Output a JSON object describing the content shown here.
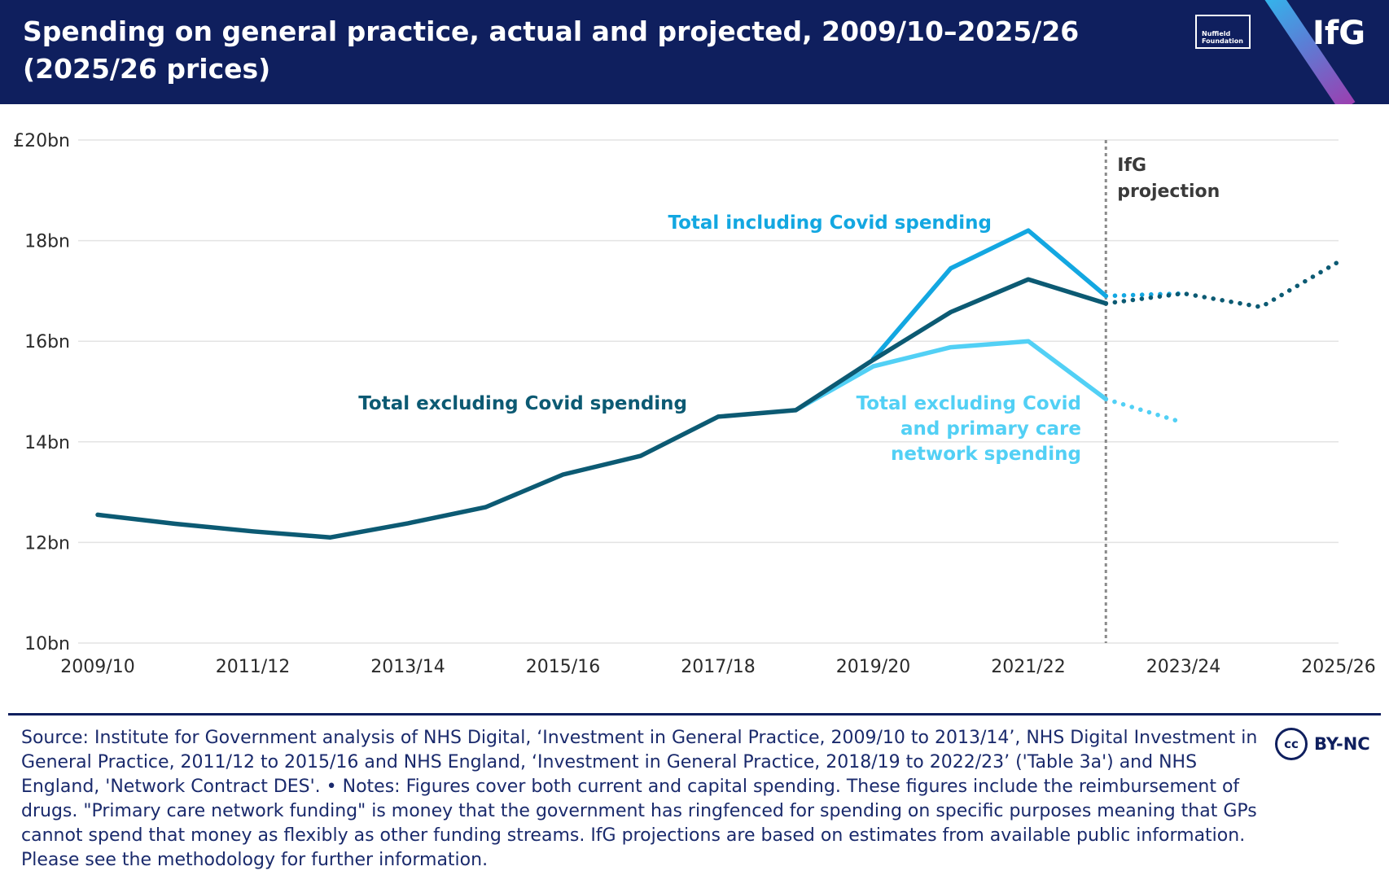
{
  "header": {
    "title": "Spending on general practice, actual and projected, 2009/10–2025/26 (2025/26 prices)",
    "nuffield_logo_line1": "Nuffield",
    "nuffield_logo_line2": "Foundation",
    "ifg_logo": "IfG"
  },
  "colors": {
    "header_bg": "#0f1f5e",
    "total_excl_covid": "#0c5a73",
    "total_incl_covid": "#13a7e1",
    "excl_covid_pcn": "#52d0f5",
    "projection_line": "#8a8a8a",
    "grid": "#e3e3e3",
    "axis_text": "#2b2b2b"
  },
  "chart_data": {
    "type": "line",
    "title": "Spending on general practice, actual and projected, 2009/10–2025/26 (2025/26 prices)",
    "xlabel": "",
    "ylabel": "",
    "x": [
      "2009/10",
      "2010/11",
      "2011/12",
      "2012/13",
      "2013/14",
      "2014/15",
      "2015/16",
      "2016/17",
      "2017/18",
      "2018/19",
      "2019/20",
      "2020/21",
      "2021/22",
      "2022/23",
      "2023/24",
      "2024/25",
      "2025/26"
    ],
    "x_tick_labels": [
      "2009/10",
      "2011/12",
      "2013/14",
      "2015/16",
      "2017/18",
      "2019/20",
      "2021/22",
      "2023/24",
      "2025/26"
    ],
    "ylim": [
      10,
      20
    ],
    "y_ticks": [
      10,
      12,
      14,
      16,
      18,
      20
    ],
    "y_tick_labels": [
      "10bn",
      "12bn",
      "14bn",
      "16bn",
      "18bn",
      "£20bn"
    ],
    "grid": true,
    "projection_start": "2022/23",
    "projection_label_line1": "IfG",
    "projection_label_line2": "projection",
    "series": [
      {
        "name": "Total including Covid spending",
        "label_lines": [
          "Total including Covid spending"
        ],
        "actual": [
          null,
          null,
          null,
          null,
          null,
          null,
          null,
          null,
          null,
          null,
          15.65,
          17.45,
          18.2,
          16.9
        ],
        "projected": [
          null,
          null,
          null,
          null,
          null,
          null,
          null,
          null,
          null,
          null,
          null,
          null,
          null,
          16.9,
          16.95
        ]
      },
      {
        "name": "Total excluding Covid spending",
        "label_lines": [
          "Total excluding Covid spending"
        ],
        "actual": [
          12.55,
          12.37,
          12.22,
          12.1,
          12.38,
          12.7,
          13.35,
          13.72,
          14.5,
          14.63,
          15.63,
          16.58,
          17.23,
          16.75
        ],
        "projected": [
          null,
          null,
          null,
          null,
          null,
          null,
          null,
          null,
          null,
          null,
          null,
          null,
          null,
          16.75,
          16.95,
          16.68,
          17.58
        ]
      },
      {
        "name": "Total excluding Covid and primary care network spending",
        "label_lines": [
          "Total excluding Covid",
          "and primary care",
          "network spending"
        ],
        "actual": [
          null,
          null,
          null,
          null,
          null,
          null,
          null,
          null,
          null,
          14.63,
          15.5,
          15.88,
          16.0,
          14.85
        ],
        "projected": [
          null,
          null,
          null,
          null,
          null,
          null,
          null,
          null,
          null,
          null,
          null,
          null,
          null,
          14.85,
          14.38
        ]
      }
    ]
  },
  "footer": {
    "source": "Source: Institute for Government analysis of NHS Digital, ‘Investment in General Practice, 2009/10 to 2013/14’, NHS Digital Investment in General Practice, 2011/12 to 2015/16 and NHS England, ‘Investment in General Practice, 2018/19 to 2022/23’ ('Table 3a') and NHS England, 'Network Contract DES'. • Notes: Figures cover both current and capital spending. These figures include the reimbursement of drugs. \"Primary care network funding\" is money that the government has ringfenced for spending on specific purposes meaning that GPs cannot spend that money as flexibly as other funding streams. IfG projections are based on estimates from available public information. Please see the methodology for further information.",
    "license_icon": "cc",
    "license_text": "BY-NC"
  }
}
